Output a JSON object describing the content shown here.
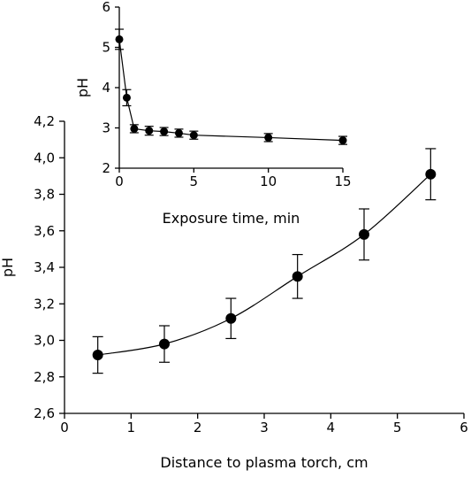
{
  "chart_data": [
    {
      "type": "scatter",
      "role": "main",
      "xlabel": "Distance to plasma torch, cm",
      "ylabel": "pH",
      "xlim": [
        0,
        6
      ],
      "ylim": [
        2.6,
        4.2
      ],
      "xticks": [
        0,
        1,
        2,
        3,
        4,
        5,
        6
      ],
      "xtick_labels": [
        "0",
        "1",
        "2",
        "3",
        "4",
        "5",
        "6"
      ],
      "yticks": [
        2.6,
        2.8,
        3.0,
        3.2,
        3.4,
        3.6,
        3.8,
        4.0,
        4.2
      ],
      "ytick_labels": [
        "2,6",
        "2,8",
        "3,0",
        "3,2",
        "3,4",
        "3,6",
        "3,8",
        "4,0",
        "4,2"
      ],
      "grid": false,
      "series": [
        {
          "x": [
            0.5,
            1.5,
            2.5,
            3.5,
            4.5,
            5.5
          ],
          "y": [
            2.92,
            2.98,
            3.12,
            3.35,
            3.58,
            3.91
          ],
          "err": [
            0.1,
            0.1,
            0.11,
            0.12,
            0.14,
            0.14
          ],
          "marker": "filled-circle",
          "line": "smooth",
          "color": "#000000"
        }
      ]
    },
    {
      "type": "scatter",
      "role": "inset",
      "xlabel": "Exposure time, min",
      "ylabel": "pH",
      "xlim": [
        0,
        15
      ],
      "ylim": [
        2,
        6
      ],
      "xticks": [
        0,
        5,
        10,
        15
      ],
      "xtick_labels": [
        "0",
        "5",
        "10",
        "15"
      ],
      "yticks": [
        2,
        3,
        4,
        5,
        6
      ],
      "ytick_labels": [
        "2",
        "3",
        "4",
        "5",
        "6"
      ],
      "grid": false,
      "series": [
        {
          "x": [
            0,
            0.5,
            1,
            2,
            3,
            4,
            5,
            10,
            15
          ],
          "y": [
            5.2,
            3.75,
            2.98,
            2.93,
            2.91,
            2.87,
            2.82,
            2.76,
            2.69
          ],
          "err": [
            0.25,
            0.2,
            0.1,
            0.11,
            0.1,
            0.1,
            0.1,
            0.1,
            0.1
          ],
          "marker": "filled-circle",
          "line": "straight",
          "color": "#000000"
        }
      ]
    }
  ]
}
